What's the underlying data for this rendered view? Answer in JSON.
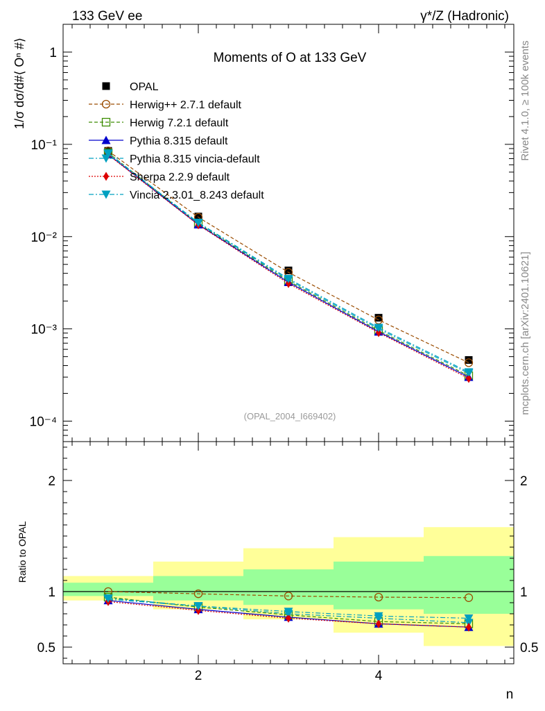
{
  "header": {
    "left": "133 GeV ee",
    "right": "γ*/Z (Hadronic)"
  },
  "side_labels": {
    "rivet": "Rivet 4.1.0, ≥ 100k events",
    "mcplots": "mcplots.cern.ch [arXiv:2401.10621]"
  },
  "chart_data": [
    {
      "type": "line",
      "title": "Moments of O at 133 GeV",
      "watermark": "(OPAL_2004_I669402)",
      "ylabel": "1/σ  dσ/d#⟨ Oⁿ #⟩",
      "yscale": "log",
      "ylim": [
        6e-05,
        2
      ],
      "xlim": [
        0.5,
        5.5
      ],
      "y_ticks": [
        {
          "value": 1,
          "label": "1"
        },
        {
          "value": 0.1,
          "label": "10⁻¹"
        },
        {
          "value": 0.01,
          "label": "10⁻²"
        },
        {
          "value": 0.001,
          "label": "10⁻³"
        },
        {
          "value": 0.0001,
          "label": "10⁻⁴"
        }
      ],
      "x": [
        1,
        2,
        3,
        4,
        5
      ],
      "series": [
        {
          "name": "OPAL",
          "color": "#000000",
          "dash": "",
          "marker": "square-filled",
          "values": [
            0.085,
            0.0165,
            0.0043,
            0.00132,
            0.00046
          ]
        },
        {
          "name": "Herwig++ 2.7.1 default",
          "color": "#9a4c00",
          "dash": "5,3",
          "marker": "circle-open",
          "values": [
            0.085,
            0.0162,
            0.0041,
            0.00125,
            0.00043
          ]
        },
        {
          "name": "Herwig 7.2.1 default",
          "color": "#3a8c00",
          "dash": "5,3",
          "marker": "square-open",
          "values": [
            0.081,
            0.0138,
            0.0033,
            0.00096,
            0.00031
          ]
        },
        {
          "name": "Pythia 8.315 default",
          "color": "#0000cc",
          "dash": "",
          "marker": "triangle-up",
          "values": [
            0.078,
            0.0135,
            0.0032,
            0.00093,
            0.0003
          ]
        },
        {
          "name": "Pythia 8.315 vincia-default",
          "color": "#00a0c0",
          "dash": "7,3,2,3",
          "marker": "triangle-down",
          "values": [
            0.079,
            0.014,
            0.0034,
            0.001,
            0.00033
          ]
        },
        {
          "name": "Sherpa 2.2.9 default",
          "color": "#dd0000",
          "dash": "2,2",
          "marker": "diamond",
          "values": [
            0.077,
            0.0134,
            0.0031,
            0.00091,
            0.00029
          ]
        },
        {
          "name": "Vincia 2.3.01_8.243 default",
          "color": "#00a0c0",
          "dash": "7,3,2,3",
          "marker": "triangle-down",
          "values": [
            0.08,
            0.0142,
            0.0035,
            0.00103,
            0.00034
          ]
        }
      ]
    },
    {
      "type": "line",
      "ylabel": "Ratio to OPAL",
      "xlabel": "n",
      "ylim": [
        0.35,
        2.35
      ],
      "xlim": [
        0.5,
        5.5
      ],
      "y_ticks": [
        {
          "value": 0.5,
          "label": "0.5"
        },
        {
          "value": 1,
          "label": "1"
        },
        {
          "value": 2,
          "label": "2"
        }
      ],
      "x_ticks": [
        {
          "value": 2,
          "label": "2"
        },
        {
          "value": 4,
          "label": "4"
        }
      ],
      "bands": [
        {
          "x0": 0.5,
          "x1": 1.5,
          "inner": [
            0.96,
            1.08
          ],
          "outer": [
            0.92,
            1.14
          ]
        },
        {
          "x0": 1.5,
          "x1": 2.5,
          "inner": [
            0.92,
            1.14
          ],
          "outer": [
            0.84,
            1.27
          ]
        },
        {
          "x0": 2.5,
          "x1": 3.5,
          "inner": [
            0.88,
            1.2
          ],
          "outer": [
            0.75,
            1.39
          ]
        },
        {
          "x0": 3.5,
          "x1": 4.5,
          "inner": [
            0.84,
            1.27
          ],
          "outer": [
            0.63,
            1.49
          ]
        },
        {
          "x0": 4.5,
          "x1": 5.5,
          "inner": [
            0.8,
            1.32
          ],
          "outer": [
            0.51,
            1.58
          ]
        }
      ],
      "x": [
        1,
        2,
        3,
        4,
        5
      ],
      "series": [
        {
          "name": "Herwig++ 2.7.1 default",
          "values": [
            1.0,
            0.98,
            0.96,
            0.95,
            0.945
          ]
        },
        {
          "name": "Herwig 7.2.1 default",
          "values": [
            0.95,
            0.86,
            0.79,
            0.73,
            0.71
          ]
        },
        {
          "name": "Pythia 8.315 default",
          "values": [
            0.92,
            0.84,
            0.77,
            0.71,
            0.68
          ]
        },
        {
          "name": "Pythia 8.315 vincia-default",
          "values": [
            0.93,
            0.87,
            0.8,
            0.76,
            0.72
          ]
        },
        {
          "name": "Sherpa 2.2.9 default",
          "values": [
            0.91,
            0.83,
            0.76,
            0.71,
            0.68
          ]
        },
        {
          "name": "Vincia 2.3.01_8.243 default",
          "values": [
            0.94,
            0.87,
            0.82,
            0.78,
            0.76
          ]
        }
      ]
    }
  ]
}
